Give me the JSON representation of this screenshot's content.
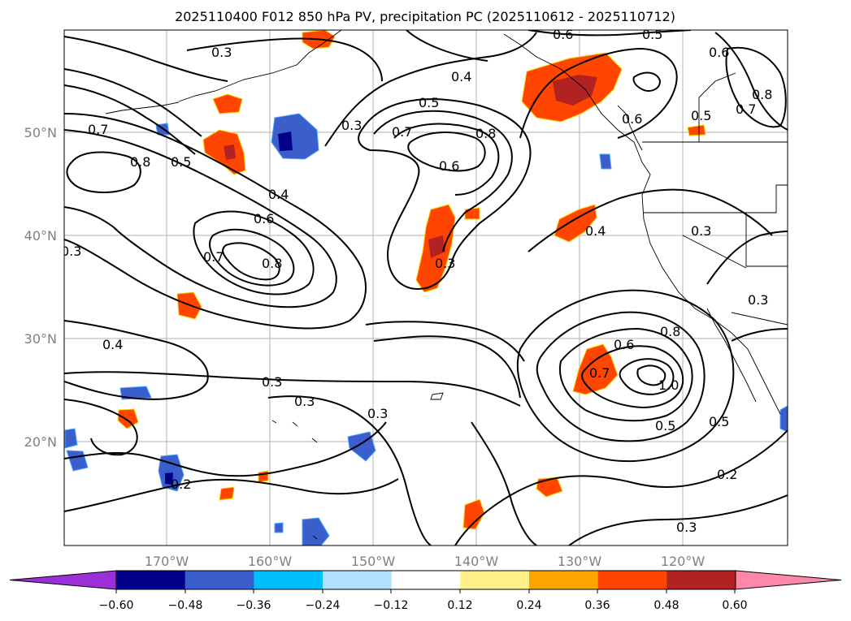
{
  "title": "2025110400 F012 850 hPa PV, precipitation PC (2025110612 - 2025110712)",
  "latitude_labels": [
    "50°N",
    "40°N",
    "30°N",
    "20°N"
  ],
  "longitude_labels": [
    "170°W",
    "160°W",
    "150°W",
    "140°W",
    "130°W",
    "120°W"
  ],
  "colorbar": {
    "tick_labels": [
      "−0.60",
      "−0.48",
      "−0.36",
      "−0.24",
      "−0.12",
      "0.12",
      "0.24",
      "0.36",
      "0.48",
      "0.60"
    ],
    "colors": [
      "#9b30d9",
      "#00008b",
      "#3a5fcd",
      "#00bfff",
      "#b0e2ff",
      "#ffffff",
      "#fff08a",
      "#ffa500",
      "#ff4500",
      "#b22222",
      "#ff88aa"
    ]
  },
  "contour_labels": [
    "0.6",
    "0.5",
    "0.6",
    "0.3",
    "0.4",
    "0.5",
    "0.3",
    "0.7",
    "0.8",
    "0.6",
    "0.8",
    "0.7",
    "0.5",
    "0.6",
    "0.7",
    "0.8",
    "0.5",
    "0.4",
    "0.6",
    "0.3",
    "0.8",
    "0.7",
    "0.3",
    "0.4",
    "0.3",
    "0.4",
    "0.3",
    "0.6",
    "0.8",
    "0.7",
    "1.0",
    "0.5",
    "0.5",
    "0.3",
    "0.3",
    "0.3",
    "0.2",
    "0.2",
    "0.3"
  ]
}
